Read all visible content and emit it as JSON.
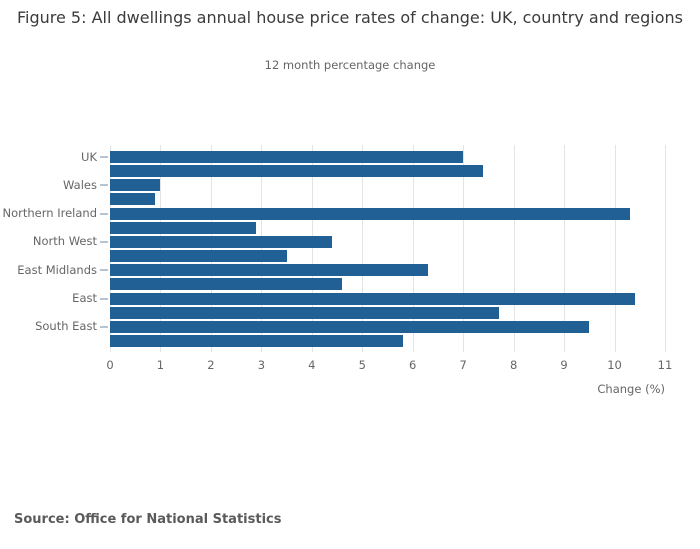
{
  "figure": {
    "title": "Figure 5: All dwellings annual house price rates of change: UK, country and regions",
    "subtitle": "12 month percentage change",
    "source": "Source: Office for National Statistics"
  },
  "colors": {
    "bar": "#206095",
    "grid": "#e4e4e4",
    "axis_text": "#666666",
    "title_text": "#3b3b3b",
    "tick_dash": "#b7c4d4"
  },
  "chart_data": {
    "type": "bar",
    "orientation": "horizontal",
    "title": "Figure 5: All dwellings annual house price rates of change: UK, country and regions",
    "subtitle": "12 month percentage change",
    "xlabel": "Change (%)",
    "ylabel": "",
    "xlim": [
      0,
      11
    ],
    "xticks": [
      0,
      1,
      2,
      3,
      4,
      5,
      6,
      7,
      8,
      9,
      10,
      11
    ],
    "grid": true,
    "legend_position": "none",
    "categories": [
      "UK",
      "Wales",
      "Northern Ireland",
      "North West",
      "East Midlands",
      "East",
      "South East"
    ],
    "series": [
      {
        "name": "top-bar",
        "values": [
          7.0,
          1.0,
          10.3,
          4.4,
          6.3,
          10.4,
          9.5
        ]
      },
      {
        "name": "bottom-bar",
        "values": [
          7.4,
          0.9,
          2.9,
          3.5,
          4.6,
          7.7,
          5.8
        ]
      }
    ]
  }
}
